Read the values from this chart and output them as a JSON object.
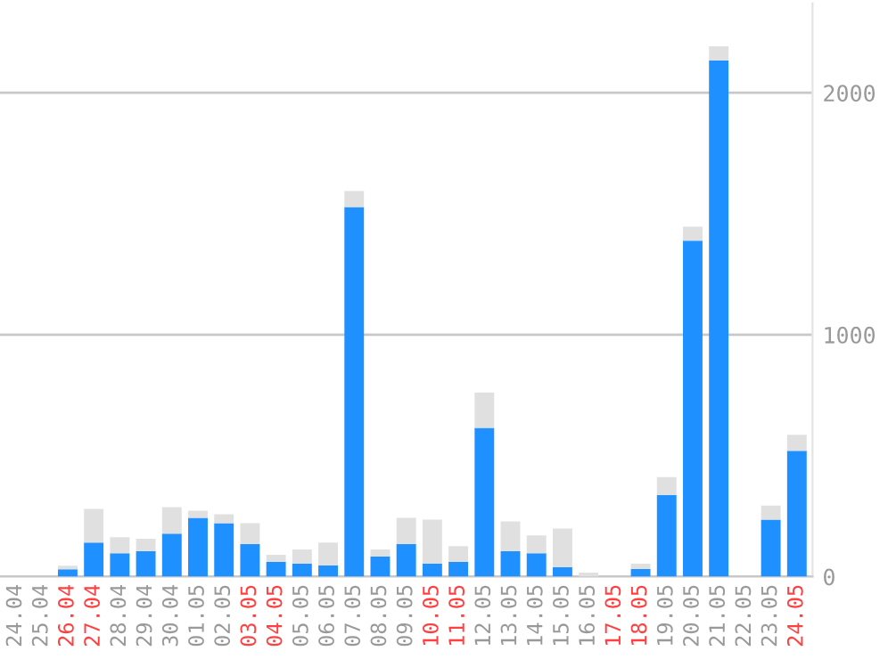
{
  "chart_data": {
    "type": "bar",
    "stacked": true,
    "categories": [
      "24.04",
      "25.04",
      "26.04",
      "27.04",
      "28.04",
      "29.04",
      "30.04",
      "01.05",
      "02.05",
      "03.05",
      "04.05",
      "05.05",
      "06.05",
      "07.05",
      "08.05",
      "09.05",
      "10.05",
      "11.05",
      "12.05",
      "13.05",
      "14.05",
      "15.05",
      "16.05",
      "17.05",
      "18.05",
      "19.05",
      "20.05",
      "21.05",
      "22.05",
      "23.05",
      "24.05"
    ],
    "series": [
      {
        "color": "#1e90ff",
        "values": [
          0,
          0,
          30,
          141,
          97,
          105,
          178,
          243,
          221,
          134,
          61,
          53,
          46,
          1528,
          83,
          134,
          53,
          61,
          615,
          105,
          97,
          39,
          0,
          0,
          31,
          338,
          1389,
          2134,
          0,
          236,
          520
        ]
      },
      {
        "color": "#e0e0e0",
        "values": [
          0,
          0,
          15,
          139,
          66,
          51,
          109,
          29,
          37,
          87,
          29,
          59,
          95,
          66,
          29,
          109,
          183,
          65,
          146,
          123,
          73,
          160,
          17,
          0,
          22,
          73,
          58,
          58,
          0,
          58,
          66
        ]
      }
    ],
    "ylim": [
      0,
      2370
    ],
    "yticks": [
      0,
      1000,
      2000
    ],
    "grid": "y",
    "legend": false
  }
}
